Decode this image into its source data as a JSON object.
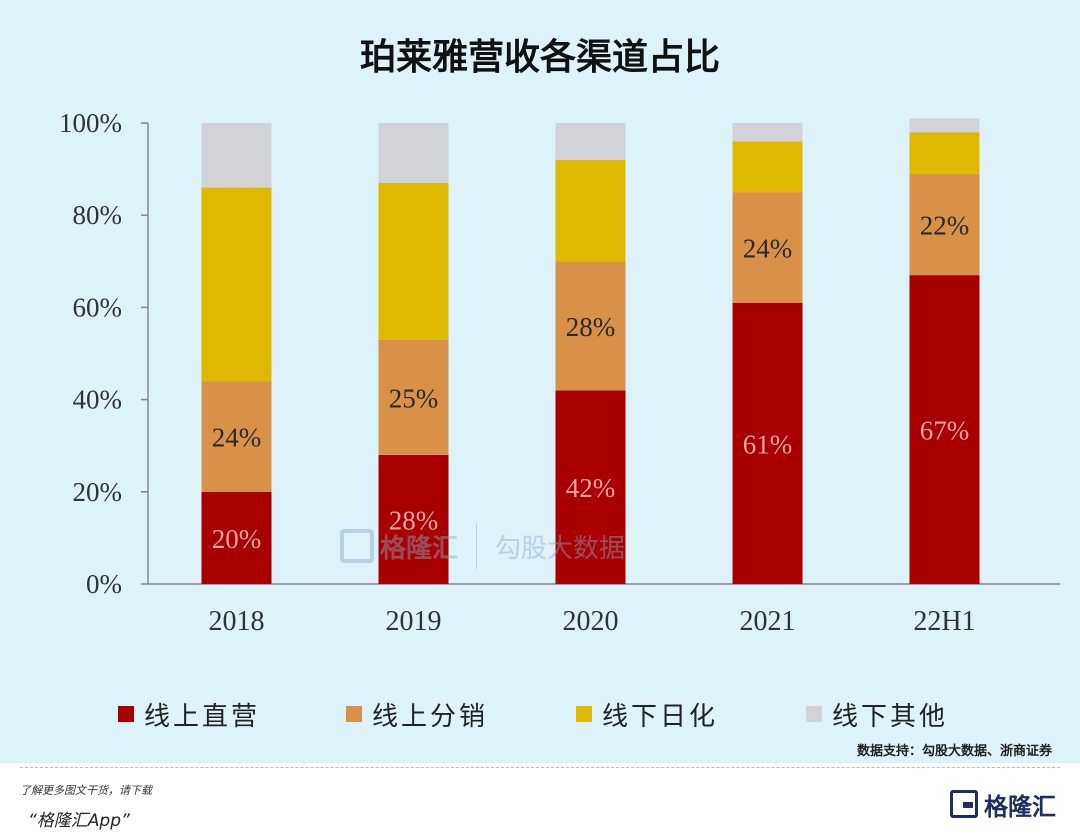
{
  "title": "珀莱雅营收各渠道占比",
  "chart_data": {
    "type": "bar",
    "stacked": true,
    "categories": [
      "2018",
      "2019",
      "2020",
      "2021",
      "22H1"
    ],
    "series": [
      {
        "name": "线上直营",
        "color": "#a80000",
        "values": [
          20,
          28,
          42,
          61,
          67
        ],
        "labels": [
          "20%",
          "28%",
          "42%",
          "61%",
          "67%"
        ],
        "label_color": "#e9a5a5"
      },
      {
        "name": "线上分销",
        "color": "#d99048",
        "values": [
          24,
          25,
          28,
          24,
          22
        ],
        "labels": [
          "24%",
          "25%",
          "28%",
          "24%",
          "22%"
        ],
        "label_color": "#2a2a2a"
      },
      {
        "name": "线下日化",
        "color": "#dfb900",
        "values": [
          42,
          34,
          22,
          11,
          9
        ],
        "labels": [],
        "label_color": "#2a2a2a"
      },
      {
        "name": "线下其他",
        "color": "#d2d3d8",
        "values": [
          14,
          13,
          8,
          4,
          3
        ],
        "labels": [],
        "label_color": "#2a2a2a"
      }
    ],
    "ylim": [
      0,
      100
    ],
    "yticks": [
      0,
      20,
      40,
      60,
      80,
      100
    ],
    "ytick_labels": [
      "0%",
      "20%",
      "40%",
      "60%",
      "80%",
      "100%"
    ],
    "grid": false,
    "legend_position": "bottom"
  },
  "source": "数据支持：勾股大数据、浙商证券",
  "watermark": {
    "brand": "格隆汇",
    "data": "勾股大数据"
  },
  "footer": {
    "line1": "了解更多图文干货，请下载",
    "line2": "“格隆汇App”",
    "brand": "格隆汇"
  }
}
